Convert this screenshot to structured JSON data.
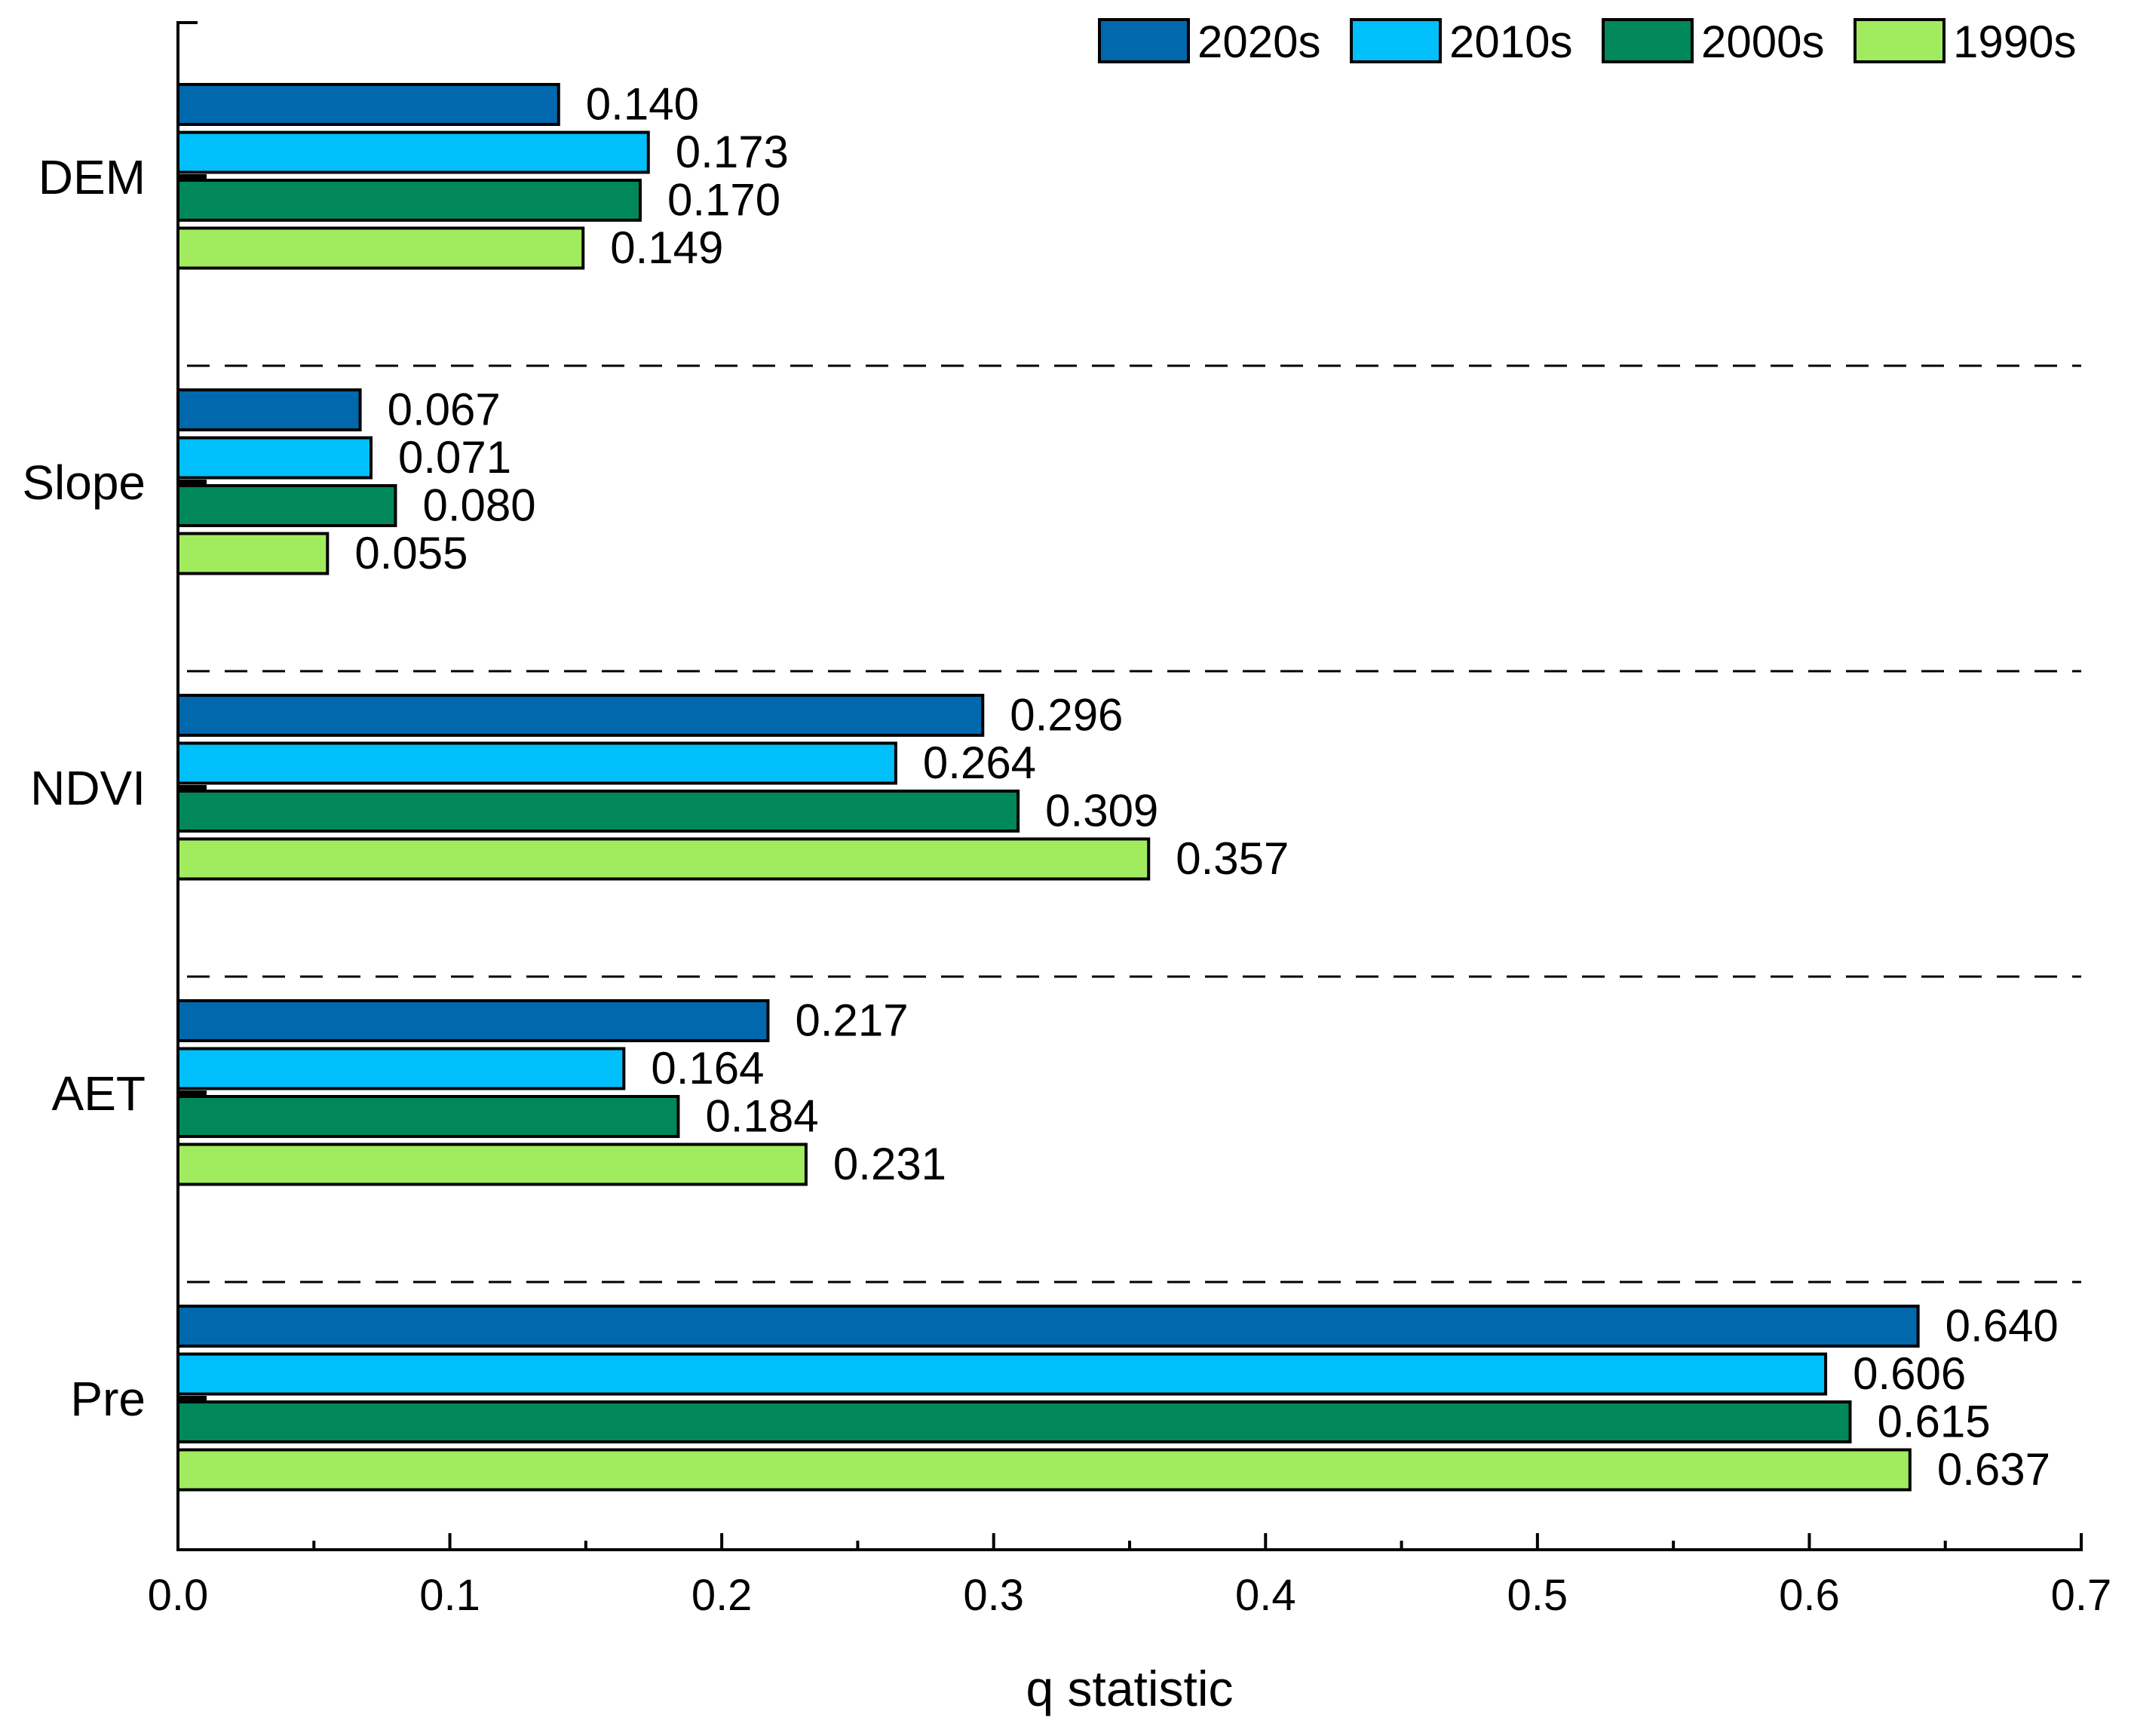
{
  "chart_data": {
    "type": "bar",
    "orientation": "horizontal",
    "title": "",
    "xlabel": "q statistic",
    "ylabel": "",
    "xlim": [
      0,
      0.7
    ],
    "x_ticks": [
      "0.0",
      "0.1",
      "0.2",
      "0.3",
      "0.4",
      "0.5",
      "0.6",
      "0.7"
    ],
    "categories": [
      "DEM",
      "Slope",
      "NDVI",
      "AET",
      "Pre"
    ],
    "series": [
      {
        "name": "2020s",
        "color": "#0268AE",
        "values": [
          0.14,
          0.067,
          0.296,
          0.217,
          0.64
        ],
        "labels": [
          "0.140",
          "0.067",
          "0.296",
          "0.217",
          "0.640"
        ]
      },
      {
        "name": "2010s",
        "color": "#00BFFA",
        "values": [
          0.173,
          0.071,
          0.264,
          0.164,
          0.606
        ],
        "labels": [
          "0.173",
          "0.071",
          "0.264",
          "0.164",
          "0.606"
        ]
      },
      {
        "name": "2000s",
        "color": "#00885A",
        "values": [
          0.17,
          0.08,
          0.309,
          0.184,
          0.615
        ],
        "labels": [
          "0.170",
          "0.080",
          "0.309",
          "0.184",
          "0.615"
        ]
      },
      {
        "name": "1990s",
        "color": "#A0EC5E",
        "values": [
          0.149,
          0.055,
          0.357,
          0.231,
          0.637
        ],
        "labels": [
          "0.149",
          "0.055",
          "0.357",
          "0.231",
          "0.637"
        ]
      }
    ],
    "legend": "top-right",
    "group_separators": "dashed",
    "grid": false
  }
}
